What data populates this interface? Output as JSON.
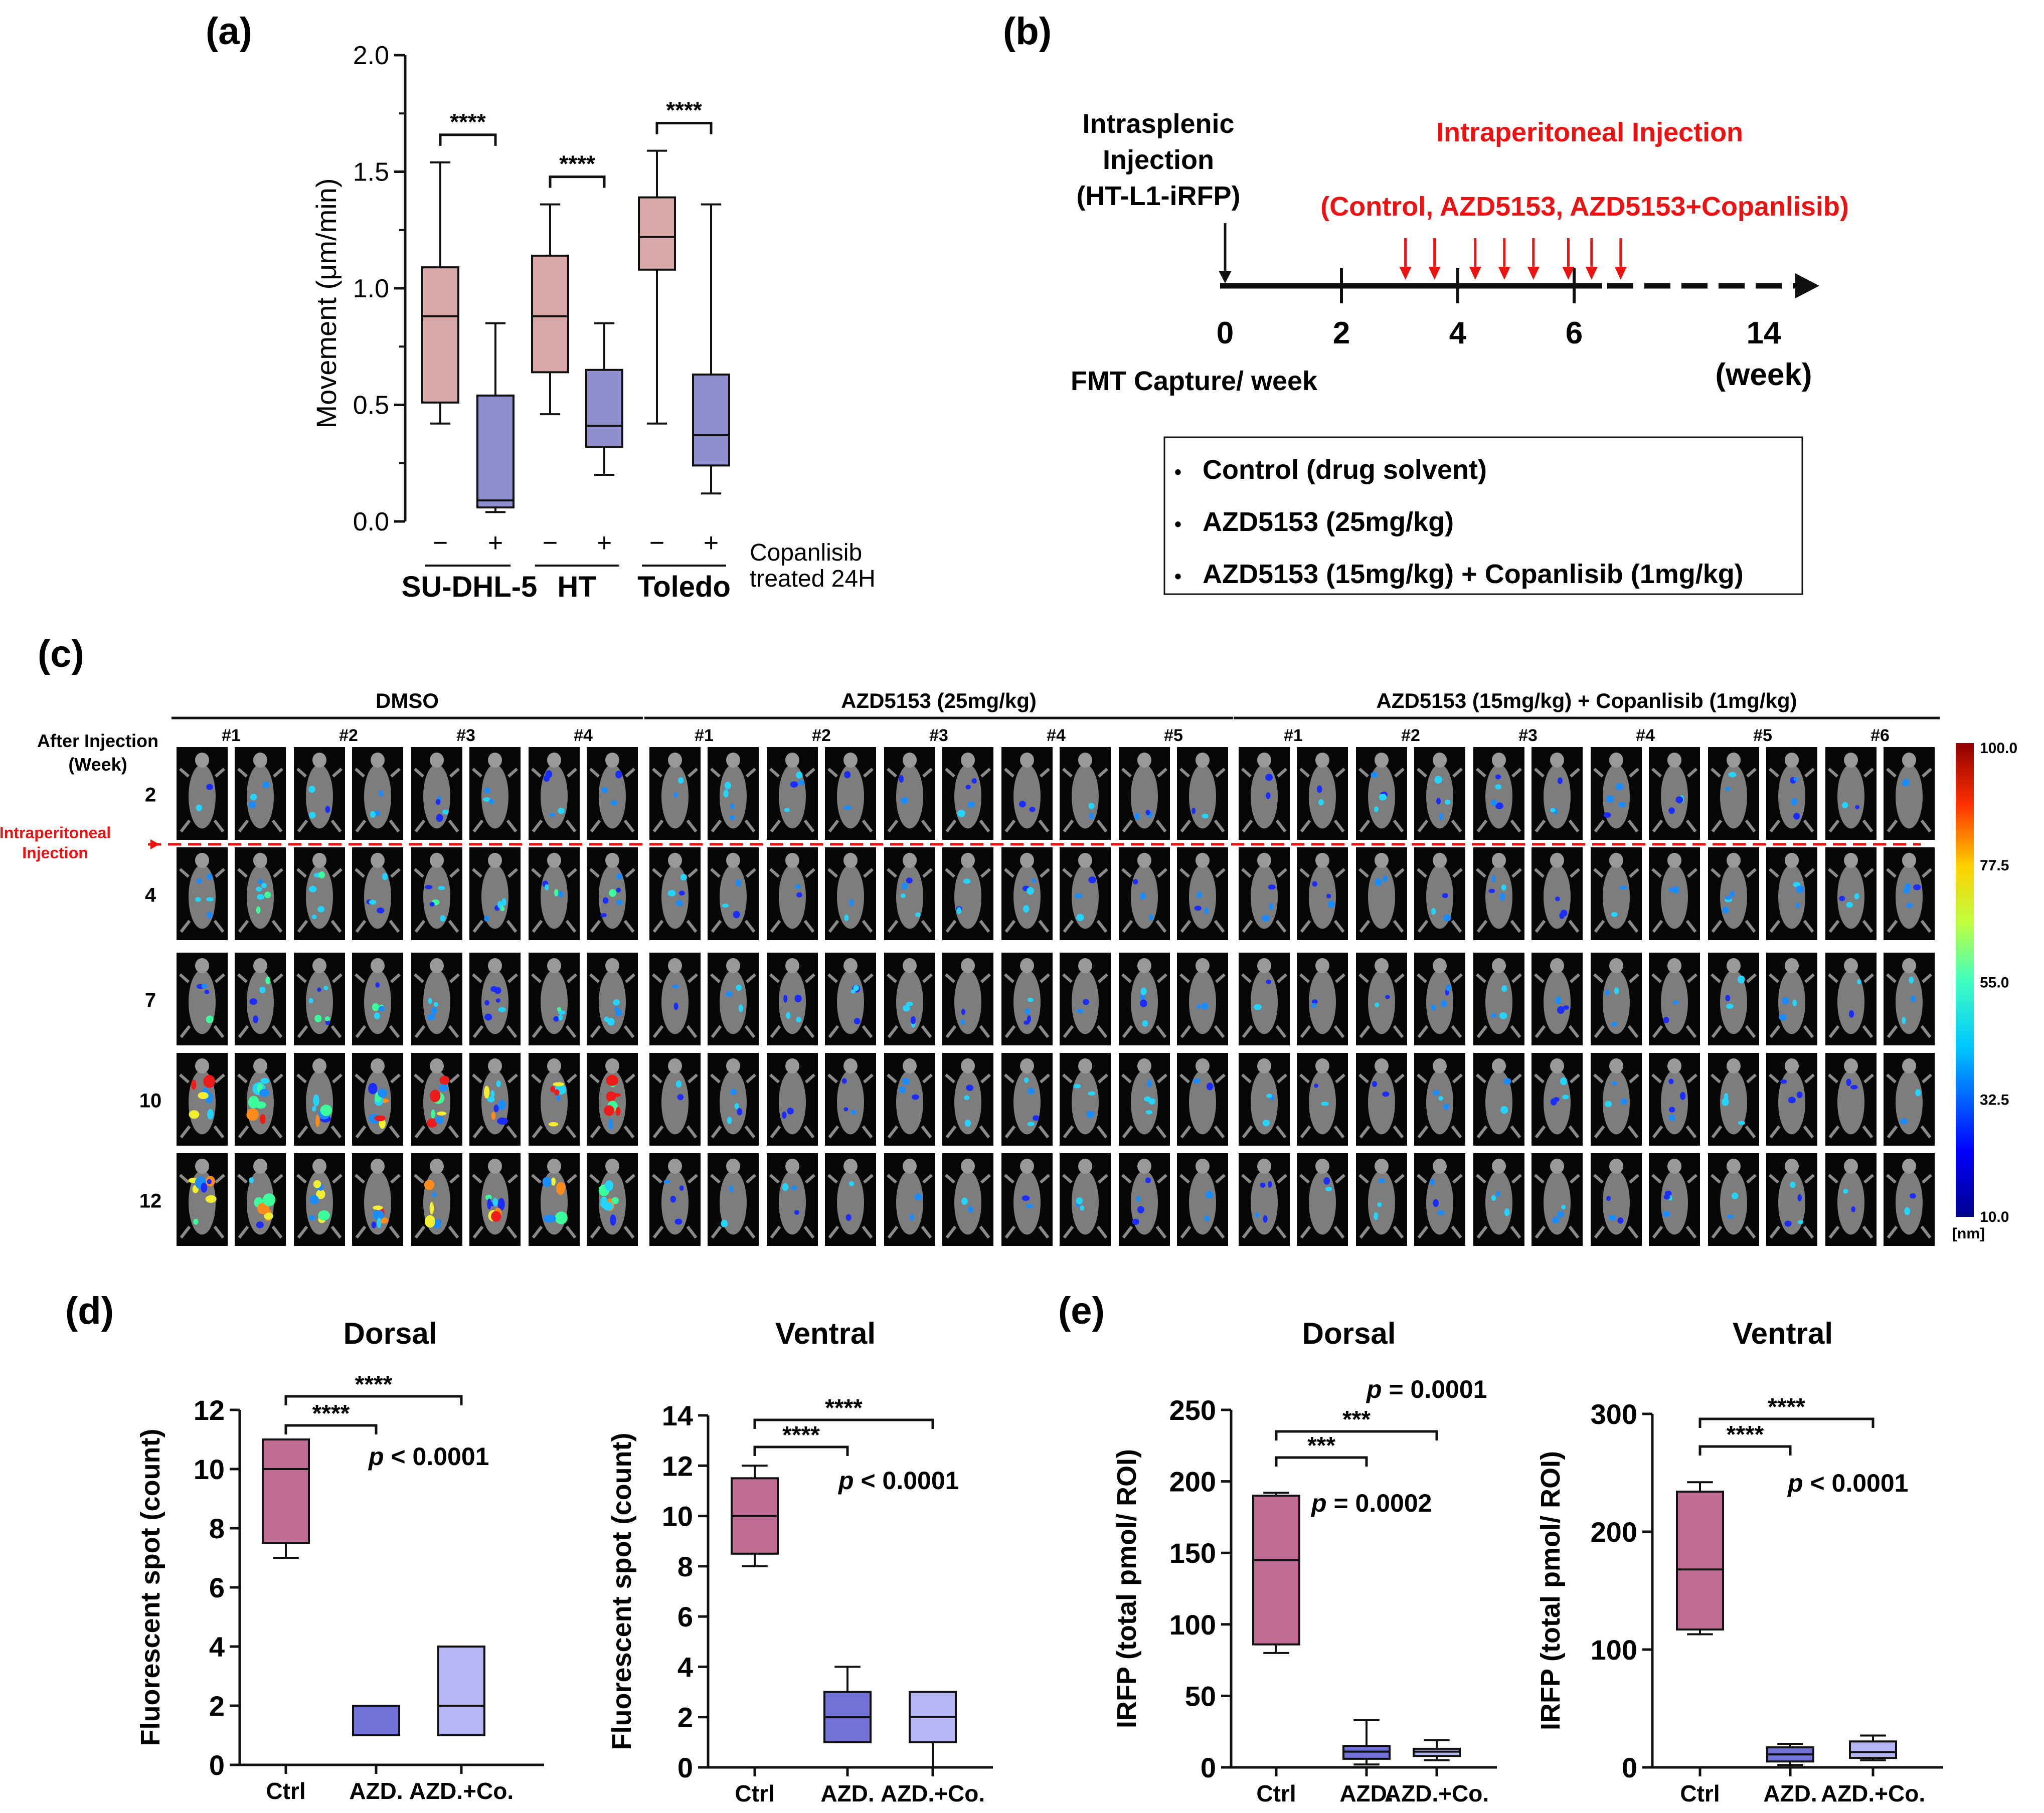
{
  "panel_labels": {
    "a": "(a)",
    "b": "(b)",
    "c": "(c)",
    "d": "(d)",
    "e": "(e)"
  },
  "colors": {
    "ctrl_box": "#d8a8a8",
    "treat_box": "#8f8fcf",
    "d_ctrl": "#c06c94",
    "d_azd": "#7272d9",
    "d_combo": "#b6b6f5",
    "red": "#ee1111",
    "dark": "#111111"
  },
  "panel_a": {
    "chart_data": {
      "type": "box",
      "title": "",
      "ylabel": "Movement (μm/min)",
      "ylim": [
        0,
        2.0
      ],
      "yticks": [
        "0.0",
        "0.5",
        "1.0",
        "1.5",
        "2.0"
      ],
      "group_note": [
        "Copanlisib",
        "treated 24H"
      ],
      "groups": [
        {
          "name": "SU-DHL-5",
          "sig": "****",
          "boxes": [
            {
              "label": "−",
              "treated": false,
              "min": 0.42,
              "q1": 0.51,
              "median": 0.88,
              "q3": 1.09,
              "max": 1.54
            },
            {
              "label": "+",
              "treated": true,
              "min": 0.04,
              "q1": 0.06,
              "median": 0.09,
              "q3": 0.54,
              "max": 0.85
            }
          ]
        },
        {
          "name": "HT",
          "sig": "****",
          "boxes": [
            {
              "label": "−",
              "treated": false,
              "min": 0.46,
              "q1": 0.64,
              "median": 0.88,
              "q3": 1.14,
              "max": 1.36
            },
            {
              "label": "+",
              "treated": true,
              "min": 0.2,
              "q1": 0.32,
              "median": 0.41,
              "q3": 0.65,
              "max": 0.85
            }
          ]
        },
        {
          "name": "Toledo",
          "sig": "****",
          "boxes": [
            {
              "label": "−",
              "treated": false,
              "min": 0.42,
              "q1": 1.08,
              "median": 1.22,
              "q3": 1.39,
              "max": 1.59
            },
            {
              "label": "+",
              "treated": true,
              "min": 0.12,
              "q1": 0.24,
              "median": 0.37,
              "q3": 0.63,
              "max": 1.36
            }
          ]
        }
      ]
    }
  },
  "panel_b": {
    "left_label": [
      "Intrasplenic",
      "Injection",
      "(HT-L1-iRFP)"
    ],
    "red_title": "Intraperitoneal Injection",
    "red_subtitle": "(Control, AZD5153, AZD5153+Copanlisib)",
    "axis_ticks": [
      "0",
      "2",
      "4",
      "6",
      "14"
    ],
    "axis_unit": "(week)",
    "fmt_label": "FMT Capture/ week",
    "injection_weeks": [
      3.1,
      3.6,
      4.3,
      4.8,
      5.3,
      5.9,
      6.3,
      6.8
    ],
    "legend": [
      "Control (drug solvent)",
      "AZD5153 (25mg/kg)",
      "AZD5153 (15mg/kg) + Copanlisib (1mg/kg)"
    ],
    "bullet": "•"
  },
  "panel_c": {
    "groups": [
      {
        "title": "DMSO",
        "mice": [
          "#1",
          "#2",
          "#3",
          "#4"
        ]
      },
      {
        "title": "AZD5153 (25mg/kg)",
        "mice": [
          "#1",
          "#2",
          "#3",
          "#4",
          "#5"
        ]
      },
      {
        "title": "AZD5153 (15mg/kg) + Copanlisib (1mg/kg)",
        "mice": [
          "#1",
          "#2",
          "#3",
          "#4",
          "#5",
          "#6"
        ]
      }
    ],
    "row_header": [
      "After Injection",
      "(Week)"
    ],
    "weeks": [
      "2",
      "4",
      "7",
      "10",
      "12"
    ],
    "red_label": [
      "Intraperitoneal",
      "Injection"
    ],
    "scale_ticks": [
      "100.0",
      "77.5",
      "55.0",
      "32.5",
      "10.0"
    ],
    "scale_unit": "[nm]"
  },
  "panel_d": [
    {
      "chart_data": {
        "type": "box",
        "title": "Dorsal",
        "ylabel": "Fluorescent spot (count)",
        "ylim": [
          0,
          12
        ],
        "yticks": [
          "0",
          "2",
          "4",
          "6",
          "8",
          "10",
          "12"
        ],
        "categories": [
          "Ctrl",
          "AZD.",
          "AZD.+Co."
        ],
        "boxes": [
          {
            "min": 7,
            "q1": 7.5,
            "median": 10,
            "q3": 11,
            "max": 11
          },
          {
            "min": 1,
            "q1": 1,
            "median": 2,
            "q3": 2,
            "max": 2
          },
          {
            "min": 1,
            "q1": 1,
            "median": 2,
            "q3": 4,
            "max": 4
          }
        ],
        "sig": [
          "****",
          "****"
        ],
        "pvalue": "< 0.0001"
      }
    },
    {
      "chart_data": {
        "type": "box",
        "title": "Ventral",
        "ylabel": "Fluorescent spot (count)",
        "ylim": [
          0,
          14
        ],
        "yticks": [
          "0",
          "2",
          "4",
          "6",
          "8",
          "10",
          "12",
          "14"
        ],
        "categories": [
          "Ctrl",
          "AZD.",
          "AZD.+Co."
        ],
        "boxes": [
          {
            "min": 8,
            "q1": 8.5,
            "median": 10,
            "q3": 11.5,
            "max": 12
          },
          {
            "min": 1,
            "q1": 1,
            "median": 2,
            "q3": 3,
            "max": 4
          },
          {
            "min": 0,
            "q1": 1,
            "median": 2,
            "q3": 3,
            "max": 3
          }
        ],
        "sig": [
          "****",
          "****"
        ],
        "pvalue": "< 0.0001"
      }
    }
  ],
  "panel_e": [
    {
      "chart_data": {
        "type": "box",
        "title": "Dorsal",
        "ylabel": "IRFP (total pmol/ ROI)",
        "ylim": [
          0,
          250
        ],
        "yticks": [
          "0",
          "50",
          "100",
          "150",
          "200",
          "250"
        ],
        "categories": [
          "Ctrl",
          "AZD.",
          "AZD.+Co."
        ],
        "boxes": [
          {
            "min": 80,
            "q1": 86,
            "median": 145,
            "q3": 190,
            "max": 192
          },
          {
            "min": 2,
            "q1": 6,
            "median": 11,
            "q3": 15,
            "max": 33
          },
          {
            "min": 5,
            "q1": 8,
            "median": 11,
            "q3": 13,
            "max": 19
          }
        ],
        "sig": [
          "***",
          "***"
        ],
        "pvalues": [
          "= 0.0002",
          "= 0.0001"
        ]
      }
    },
    {
      "chart_data": {
        "type": "box",
        "title": "Ventral",
        "ylabel": "IRFP (total pmol/ ROI)",
        "ylim": [
          0,
          300
        ],
        "yticks": [
          "0",
          "100",
          "200",
          "300"
        ],
        "categories": [
          "Ctrl",
          "AZD.",
          "AZD.+Co."
        ],
        "boxes": [
          {
            "min": 113,
            "q1": 117,
            "median": 168,
            "q3": 234,
            "max": 242
          },
          {
            "min": 2,
            "q1": 5,
            "median": 11,
            "q3": 17,
            "max": 20
          },
          {
            "min": 6,
            "q1": 8,
            "median": 13,
            "q3": 22,
            "max": 27
          }
        ],
        "sig": [
          "****",
          "****"
        ],
        "pvalue": "< 0.0001"
      }
    }
  ]
}
